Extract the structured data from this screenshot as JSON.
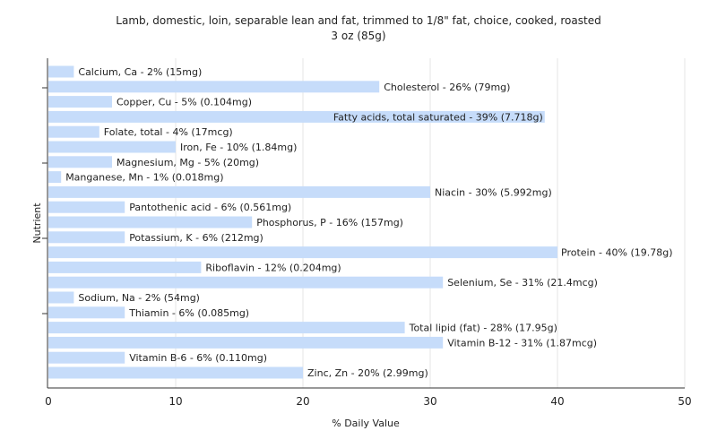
{
  "chart_data": {
    "type": "bar",
    "orientation": "horizontal",
    "title_line1": "Lamb, domestic, loin, separable lean and fat, trimmed to 1/8\" fat, choice, cooked, roasted",
    "title_line2": "3 oz (85g)",
    "xlabel": "% Daily Value",
    "ylabel": "Nutrient",
    "xlim": [
      0,
      50
    ],
    "xticks": [
      0,
      10,
      20,
      30,
      40,
      50
    ],
    "grid": true,
    "bar_color": "#c6dcfa",
    "categories": [
      "Calcium, Ca",
      "Cholesterol",
      "Copper, Cu",
      "Fatty acids, total saturated",
      "Folate, total",
      "Iron, Fe",
      "Magnesium, Mg",
      "Manganese, Mn",
      "Niacin",
      "Pantothenic acid",
      "Phosphorus, P",
      "Potassium, K",
      "Protein",
      "Riboflavin",
      "Selenium, Se",
      "Sodium, Na",
      "Thiamin",
      "Total lipid (fat)",
      "Vitamin B-12",
      "Vitamin B-6",
      "Zinc, Zn"
    ],
    "values": [
      2,
      26,
      5,
      39,
      4,
      10,
      5,
      1,
      30,
      6,
      16,
      6,
      40,
      12,
      31,
      2,
      6,
      28,
      31,
      6,
      20
    ],
    "labels": [
      "Calcium, Ca - 2% (15mg)",
      "Cholesterol - 26% (79mg)",
      "Copper, Cu - 5% (0.104mg)",
      "Fatty acids, total saturated - 39% (7.718g)",
      "Folate, total - 4% (17mcg)",
      "Iron, Fe - 10% (1.84mg)",
      "Magnesium, Mg - 5% (20mg)",
      "Manganese, Mn - 1% (0.018mg)",
      "Niacin - 30% (5.992mg)",
      "Pantothenic acid - 6% (0.561mg)",
      "Phosphorus, P - 16% (157mg)",
      "Potassium, K - 6% (212mg)",
      "Protein - 40% (19.78g)",
      "Riboflavin - 12% (0.204mg)",
      "Selenium, Se - 31% (21.4mcg)",
      "Sodium, Na - 2% (54mg)",
      "Thiamin - 6% (0.085mg)",
      "Total lipid (fat) - 28% (17.95g)",
      "Vitamin B-12 - 31% (1.87mcg)",
      "Vitamin B-6 - 6% (0.110mg)",
      "Zinc, Zn - 20% (2.99mg)"
    ]
  }
}
